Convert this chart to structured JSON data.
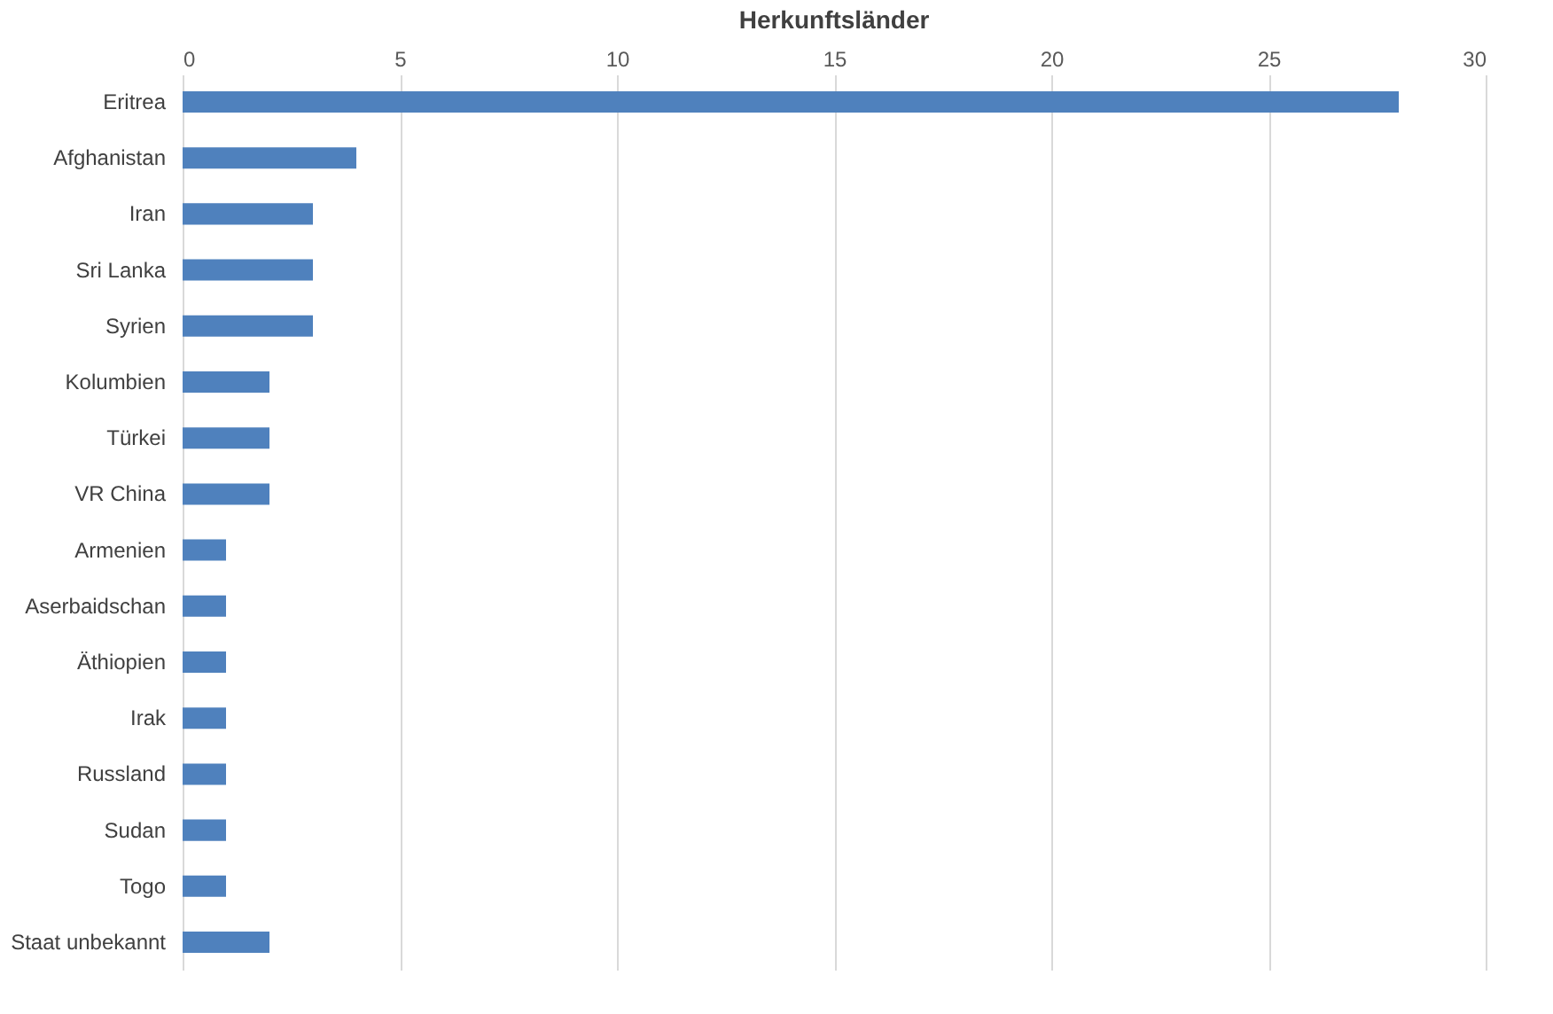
{
  "chart_data": {
    "type": "bar",
    "orientation": "horizontal",
    "title": "Herkunftsländer",
    "categories": [
      "Eritrea",
      "Afghanistan",
      "Iran",
      "Sri Lanka",
      "Syrien",
      "Kolumbien",
      "Türkei",
      "VR China",
      "Armenien",
      "Aserbaidschan",
      "Äthiopien",
      "Irak",
      "Russland",
      "Sudan",
      "Togo",
      "Staat unbekannt"
    ],
    "values": [
      28,
      4,
      3,
      3,
      3,
      2,
      2,
      2,
      1,
      1,
      1,
      1,
      1,
      1,
      1,
      2
    ],
    "color": "#4f81bd",
    "xlim": [
      0,
      30
    ],
    "xticks": [
      0,
      5,
      10,
      15,
      20,
      25,
      30
    ],
    "grid": "x"
  }
}
